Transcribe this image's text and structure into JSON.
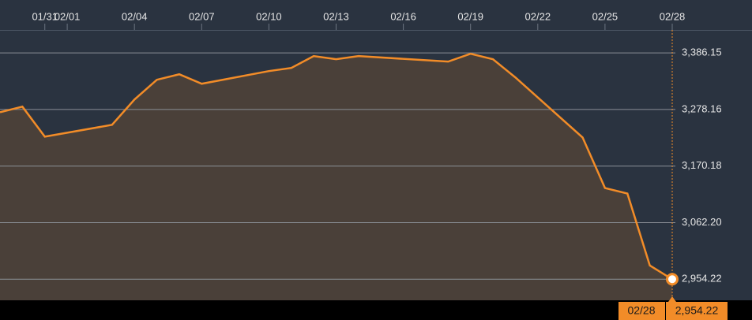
{
  "chart_data": {
    "type": "area",
    "x": [
      "01/29",
      "01/30",
      "01/31",
      "02/03",
      "02/04",
      "02/05",
      "02/06",
      "02/07",
      "02/10",
      "02/11",
      "02/12",
      "02/13",
      "02/14",
      "02/18",
      "02/19",
      "02/20",
      "02/21",
      "02/24",
      "02/25",
      "02/26",
      "02/27",
      "02/28"
    ],
    "values": [
      3273.0,
      3283.6,
      3226.3,
      3248.9,
      3297.2,
      3334.9,
      3345.4,
      3327.3,
      3351.5,
      3357.5,
      3380.1,
      3374.1,
      3380.1,
      3369.6,
      3384.6,
      3374.1,
      3339.4,
      3224.8,
      3128.3,
      3117.7,
      2980.5,
      2954.22
    ],
    "value_labels": [
      null,
      null,
      null,
      null,
      null,
      null,
      null,
      null,
      null,
      null,
      null,
      null,
      null,
      null,
      null,
      null,
      null,
      null,
      null,
      null,
      null,
      "2,954.22"
    ],
    "color": "#f28c28",
    "xlim": [
      "01/29",
      "02/28"
    ],
    "xticks": [
      "01/31",
      "02/01",
      "02/04",
      "02/07",
      "02/10",
      "02/13",
      "02/16",
      "02/19",
      "02/22",
      "02/25",
      "02/28"
    ],
    "ylim": [
      2914,
      3430
    ],
    "yticks": [
      {
        "value": 2954.22,
        "label": "2,954.22"
      },
      {
        "value": 3062.2,
        "label": "3,062.20"
      },
      {
        "value": 3170.18,
        "label": "3,170.18"
      },
      {
        "value": 3278.16,
        "label": "3,278.16"
      },
      {
        "value": 3386.15,
        "label": "3,386.15"
      }
    ],
    "grid": true
  }
}
